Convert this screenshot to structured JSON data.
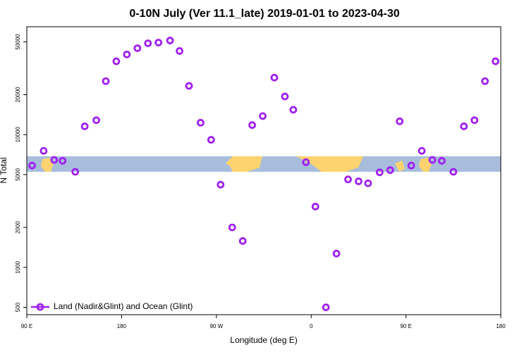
{
  "chart_data": {
    "type": "scatter",
    "title": "0-10N July (Ver 11.1_late)   2019-01-01 to 2023-04-30",
    "x_label": "Longitude (deg E)",
    "y_label": "N Total",
    "yscale": "log",
    "xlim": [
      -270,
      180
    ],
    "xticks": [
      {
        "value": -270,
        "label": "90 E"
      },
      {
        "value": -180,
        "label": "180"
      },
      {
        "value": -90,
        "label": "90 W"
      },
      0,
      {
        "value": 90,
        "label": "90 E"
      },
      180
    ],
    "ylim": [
      440,
      65000
    ],
    "yticks": [
      500,
      1000,
      2000,
      5000,
      10000,
      20000,
      50000
    ],
    "legend": "bottom left",
    "series": [
      {
        "name": "Land (Nadir&Glint) and Ocean (Glint)",
        "color": "#a020f0",
        "x": [
          -265,
          -254,
          -244,
          -236,
          -224,
          -215,
          -204,
          -195,
          -185,
          -175,
          -165,
          -155,
          -145,
          -134,
          -125,
          -116,
          -105,
          -95,
          -86,
          -75,
          -65,
          -56,
          -46,
          -35,
          -25,
          -17,
          -5,
          4,
          14,
          24,
          35,
          45,
          54,
          65,
          75,
          84,
          95,
          105,
          115,
          124,
          135,
          145,
          155,
          165,
          175
        ],
        "values": [
          5850,
          7550,
          6450,
          6350,
          5250,
          11550,
          12850,
          25300,
          35700,
          40200,
          44800,
          48800,
          49400,
          51200,
          42700,
          23300,
          12300,
          9150,
          4200,
          2000,
          1580,
          11800,
          13800,
          26900,
          19400,
          15400,
          6200,
          2870,
          500,
          1270,
          4600,
          4450,
          4300,
          5200,
          5400,
          12600,
          5850,
          7550,
          6450,
          6350,
          5250,
          11550,
          12850,
          25300,
          35700
        ]
      }
    ]
  }
}
